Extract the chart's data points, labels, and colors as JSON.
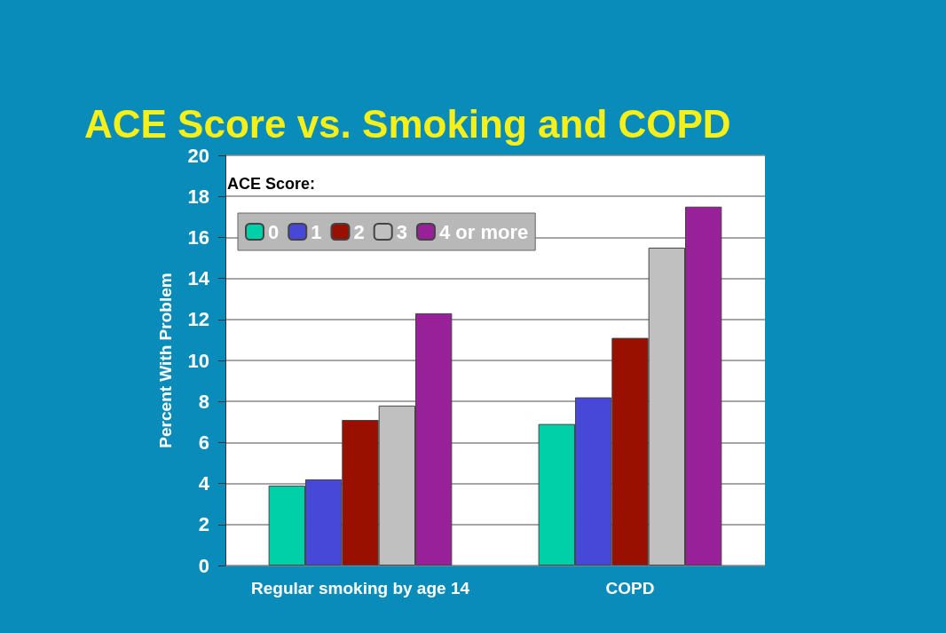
{
  "chart_data": {
    "type": "bar",
    "title": "ACE Score vs. Smoking and COPD",
    "ylabel": "Percent With Problem",
    "legend_title": "ACE Score:",
    "categories": [
      "Regular smoking by age 14",
      "COPD"
    ],
    "series": [
      {
        "name": "0",
        "color": "#00d0a8",
        "values": [
          3.9,
          6.9
        ]
      },
      {
        "name": "1",
        "color": "#4848d8",
        "values": [
          4.2,
          8.2
        ]
      },
      {
        "name": "2",
        "color": "#9a1000",
        "values": [
          7.1,
          11.1
        ]
      },
      {
        "name": "3",
        "color": "#c0c0c0",
        "values": [
          7.8,
          15.5
        ]
      },
      {
        "name": "4 or more",
        "color": "#982098",
        "values": [
          12.3,
          17.5
        ]
      }
    ],
    "ylim": [
      0,
      20
    ],
    "yticks": [
      0,
      2,
      4,
      6,
      8,
      10,
      12,
      14,
      16,
      18,
      20
    ],
    "grid": "y",
    "legend": "top left"
  }
}
